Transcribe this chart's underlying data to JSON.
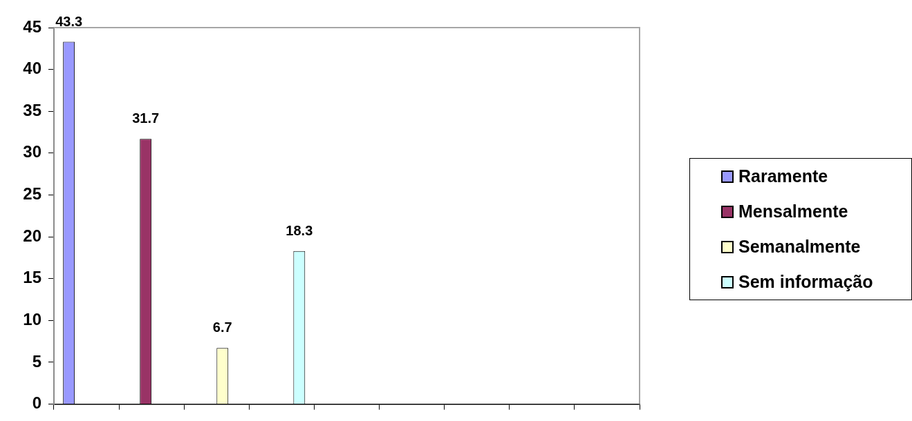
{
  "chart_data": {
    "type": "bar",
    "categories": [
      null,
      null,
      null,
      null,
      null,
      null,
      null,
      null,
      null
    ],
    "series": [
      {
        "name": "Raramente",
        "color": "#9999ff",
        "values": [
          43.3,
          null,
          null,
          null,
          null,
          null,
          null,
          null,
          null
        ]
      },
      {
        "name": "Mensalmente",
        "color": "#993366",
        "values": [
          null,
          31.7,
          null,
          null,
          null,
          null,
          null,
          null,
          null
        ]
      },
      {
        "name": "Semanalmente",
        "color": "#ffffcc",
        "values": [
          null,
          null,
          6.7,
          null,
          null,
          null,
          null,
          null,
          null
        ]
      },
      {
        "name": "Sem informação",
        "color": "#ccffff",
        "values": [
          null,
          null,
          null,
          18.3,
          null,
          null,
          null,
          null,
          null
        ]
      }
    ],
    "ylim": [
      0,
      45
    ],
    "yticks": [
      0,
      5,
      10,
      15,
      20,
      25,
      30,
      35,
      40,
      45
    ],
    "grid": false,
    "legend": "right",
    "data_labels": true
  }
}
